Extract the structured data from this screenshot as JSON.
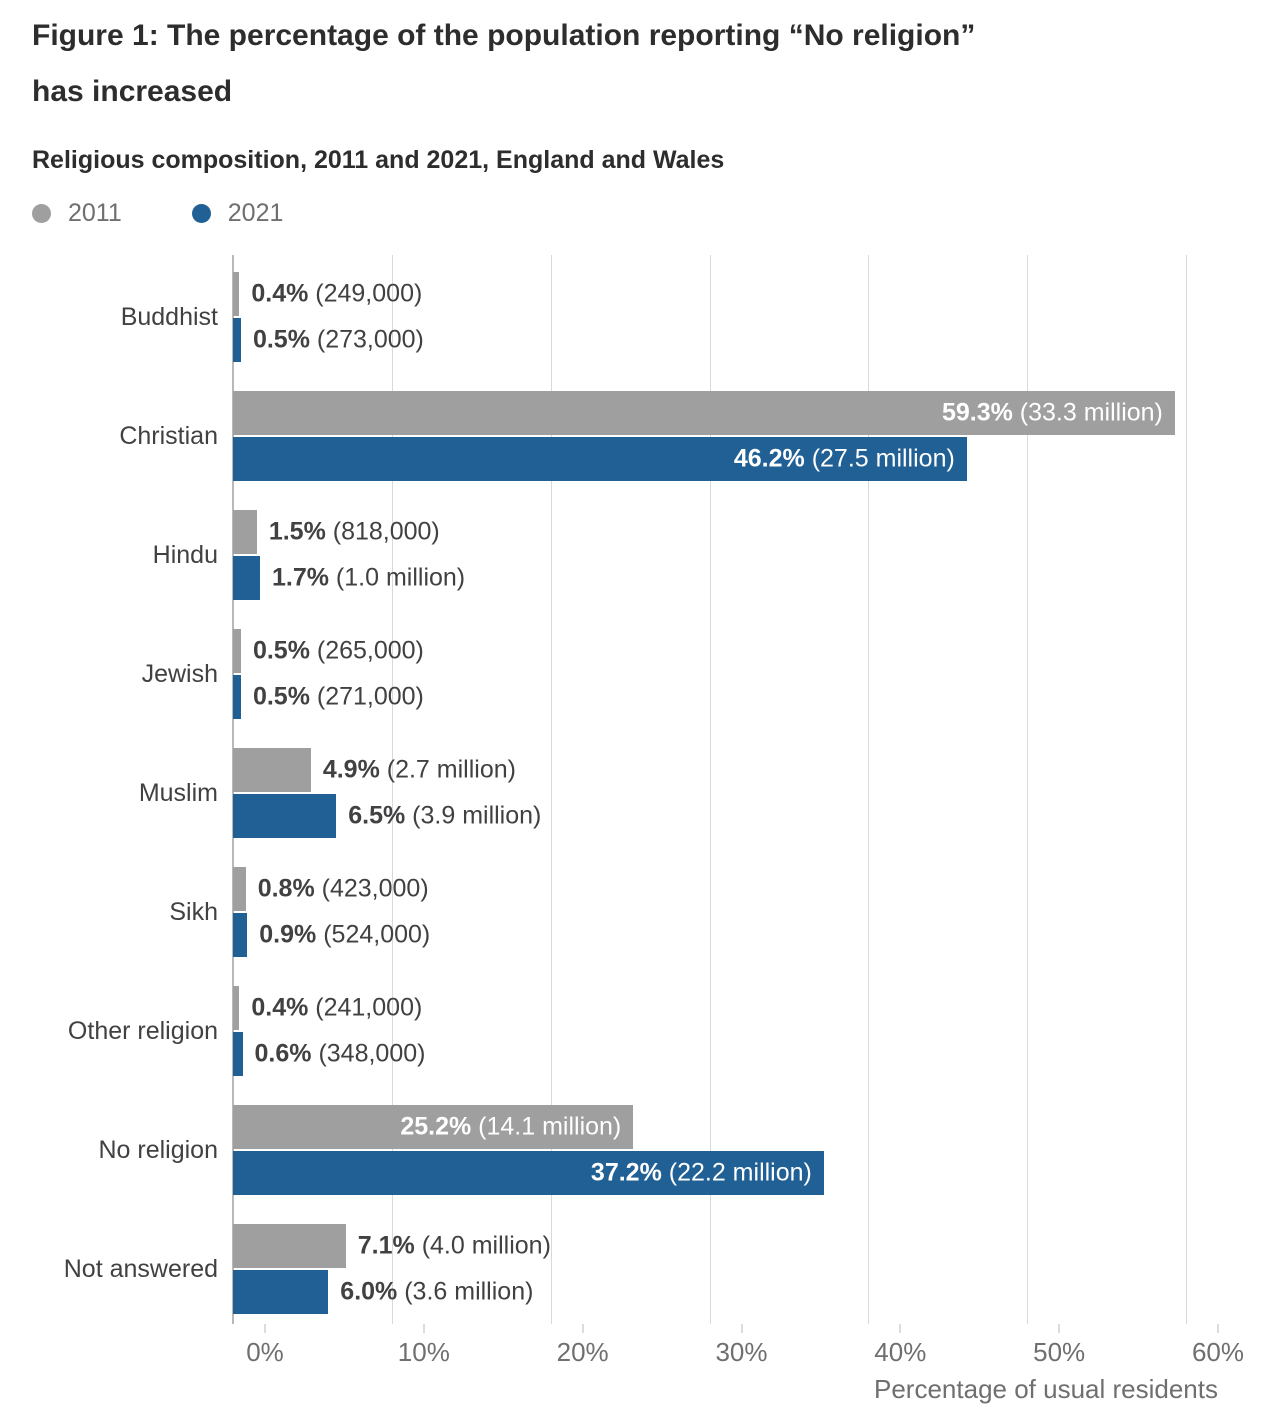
{
  "page": {
    "title_line1": "Figure 1: The percentage of the population reporting “No religion”",
    "title_line2": "has increased",
    "subtitle": "Religious composition, 2011 and 2021, England and Wales"
  },
  "colors": {
    "series_2011": "#9f9f9f",
    "series_2021": "#206095",
    "grid": "#d9d9d9",
    "axis_line": "#b9b9b9",
    "text_dark": "#414042",
    "text_muted": "#6f6f6f",
    "label_inside": "#ffffff"
  },
  "chart_data": {
    "type": "bar",
    "orientation": "horizontal",
    "title": "Figure 1: The percentage of the population reporting “No religion” has increased",
    "subtitle": "Religious composition, 2011 and 2021, England and Wales",
    "xlabel": "Percentage of usual residents",
    "xlim": [
      0,
      60
    ],
    "grid": true,
    "legend_position": "top-left",
    "x_ticks": [
      {
        "value": 0,
        "label": "0%"
      },
      {
        "value": 10,
        "label": "10%"
      },
      {
        "value": 20,
        "label": "20%"
      },
      {
        "value": 30,
        "label": "30%"
      },
      {
        "value": 40,
        "label": "40%"
      },
      {
        "value": 50,
        "label": "50%"
      },
      {
        "value": 60,
        "label": "60%"
      }
    ],
    "categories": [
      "Buddhist",
      "Christian",
      "Hindu",
      "Jewish",
      "Muslim",
      "Sikh",
      "Other religion",
      "No religion",
      "Not answered"
    ],
    "series": [
      {
        "name": "2011",
        "color": "#9f9f9f",
        "values": [
          0.4,
          59.3,
          1.5,
          0.5,
          4.9,
          0.8,
          0.4,
          25.2,
          7.1
        ],
        "pct_labels": [
          "0.4%",
          "59.3%",
          "1.5%",
          "0.5%",
          "4.9%",
          "0.8%",
          "0.4%",
          "25.2%",
          "7.1%"
        ],
        "count_labels": [
          "(249,000)",
          "(33.3 million)",
          "(818,000)",
          "(265,000)",
          "(2.7 million)",
          "(423,000)",
          "(241,000)",
          "(14.1 million)",
          "(4.0 million)"
        ],
        "label_inside": [
          false,
          true,
          false,
          false,
          false,
          false,
          false,
          true,
          false
        ]
      },
      {
        "name": "2021",
        "color": "#206095",
        "values": [
          0.5,
          46.2,
          1.7,
          0.5,
          6.5,
          0.9,
          0.6,
          37.2,
          6.0
        ],
        "pct_labels": [
          "0.5%",
          "46.2%",
          "1.7%",
          "0.5%",
          "6.5%",
          "0.9%",
          "0.6%",
          "37.2%",
          "6.0%"
        ],
        "count_labels": [
          "(273,000)",
          "(27.5 million)",
          "(1.0 million)",
          "(271,000)",
          "(3.9 million)",
          "(524,000)",
          "(348,000)",
          "(22.2 million)",
          "(3.6 million)"
        ],
        "label_inside": [
          false,
          true,
          false,
          false,
          false,
          false,
          false,
          true,
          false
        ]
      }
    ]
  }
}
